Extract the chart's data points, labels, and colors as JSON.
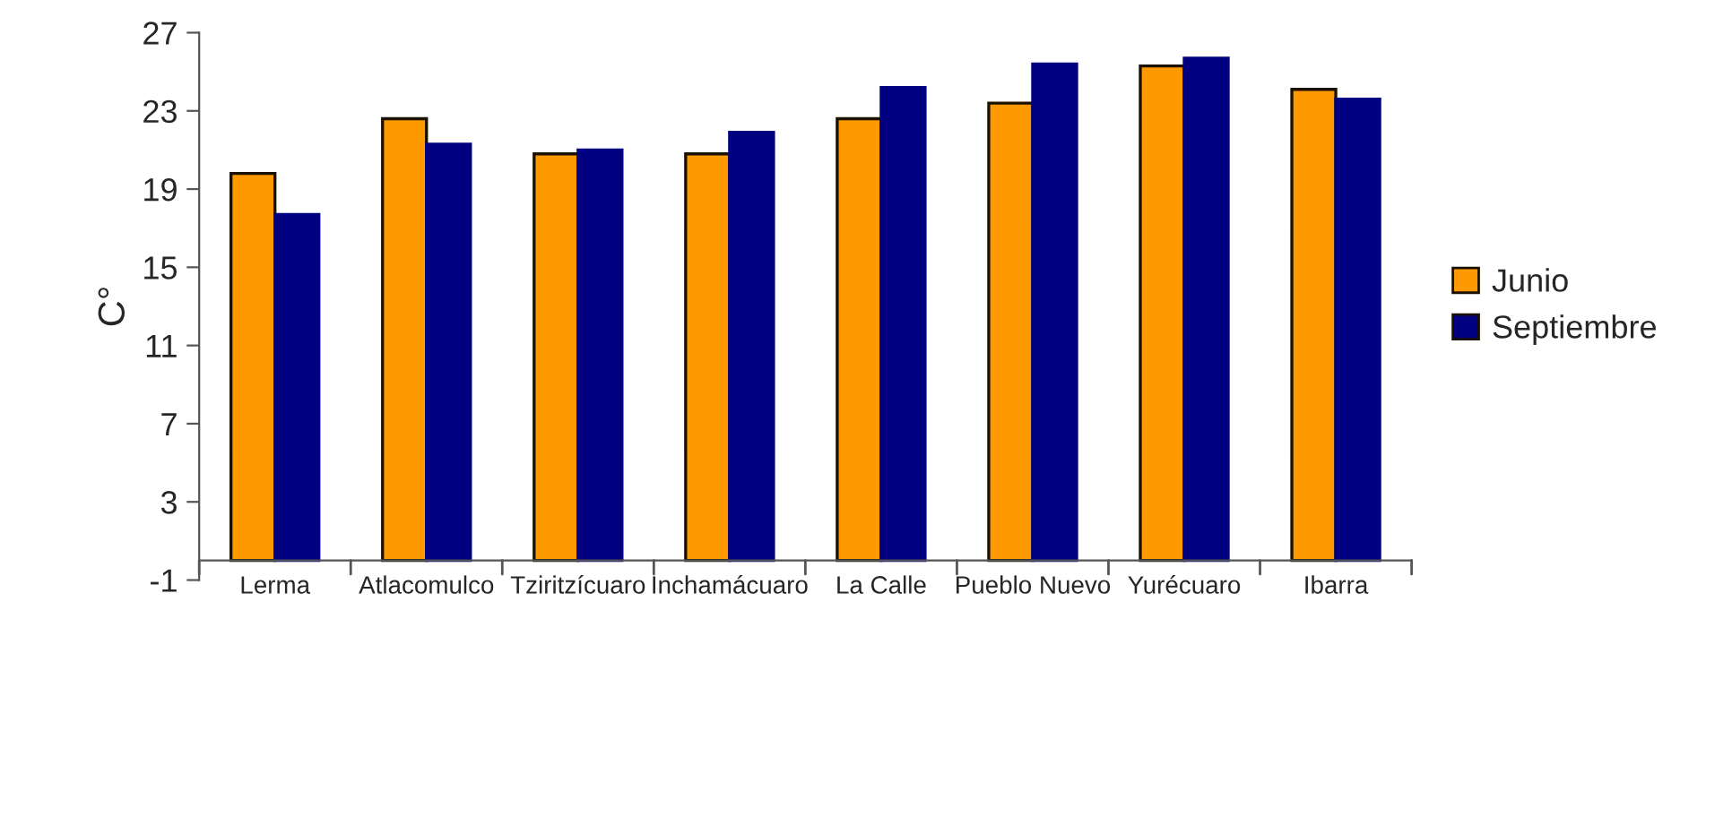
{
  "chart_data": {
    "type": "bar",
    "ylabel": "C°",
    "categories": [
      "Lerma",
      "Atlacomulco",
      "Tziritzícuaro",
      "Inchamácuaro",
      "La Calle",
      "Pueblo Nuevo",
      "Yurécuaro",
      "Ibarra"
    ],
    "series": [
      {
        "name": "Junio",
        "color": "#ff9900",
        "values": [
          19.8,
          22.6,
          20.8,
          20.8,
          22.6,
          23.4,
          25.3,
          24.1
        ]
      },
      {
        "name": "Septiembre",
        "color": "#000080",
        "values": [
          17.7,
          21.3,
          21.0,
          21.9,
          24.2,
          25.4,
          25.7,
          23.6
        ]
      }
    ],
    "ylim": [
      -1,
      27
    ],
    "yticks": [
      -1,
      3,
      7,
      11,
      15,
      19,
      23,
      27
    ],
    "grid": false,
    "legend": "right"
  }
}
